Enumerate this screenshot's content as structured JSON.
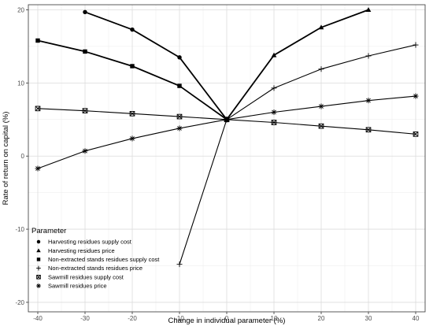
{
  "chart_data": {
    "type": "line",
    "xlabel": "Change in individual parameter (%)",
    "ylabel": "Rate of return on capital (%)",
    "xlim": [
      -42,
      42
    ],
    "ylim": [
      -21.3,
      20.7
    ],
    "xticks": [
      -40,
      -30,
      -20,
      -10,
      0,
      10,
      20,
      30,
      40
    ],
    "yticks": [
      -20,
      -10,
      0,
      10,
      20
    ],
    "grid": "major and minor",
    "legend_title": "Parameter",
    "legend_position": "inside bottom-left",
    "series": [
      {
        "name": "Harvesting residues supply cost",
        "marker": "circle",
        "line_weight": "bold",
        "x": [
          -30,
          -20,
          -10,
          0
        ],
        "y": [
          19.7,
          17.3,
          13.5,
          5.0
        ]
      },
      {
        "name": "Harvesting residues price",
        "marker": "triangle",
        "line_weight": "bold",
        "x": [
          0,
          10,
          20,
          30
        ],
        "y": [
          5.0,
          13.8,
          17.6,
          20.0
        ]
      },
      {
        "name": "Non-extracted stands residues supply cost",
        "marker": "square",
        "line_weight": "bold",
        "x": [
          -40,
          -30,
          -20,
          -10,
          0
        ],
        "y": [
          15.8,
          14.3,
          12.3,
          9.6,
          5.0
        ]
      },
      {
        "name": "Non-extracted stands residues price",
        "marker": "plus",
        "line_weight": "regular",
        "x": [
          -10,
          0,
          10,
          20,
          30,
          40
        ],
        "y": [
          -14.8,
          5.0,
          9.3,
          11.9,
          13.7,
          15.2
        ]
      },
      {
        "name": "Sawmill residues supply cost",
        "marker": "boxed-x",
        "line_weight": "regular",
        "x": [
          -40,
          -30,
          -20,
          -10,
          0,
          10,
          20,
          30,
          40
        ],
        "y": [
          6.5,
          6.2,
          5.8,
          5.4,
          5.0,
          4.6,
          4.1,
          3.6,
          3.0
        ]
      },
      {
        "name": "Sawmill residues price",
        "marker": "asterisk",
        "line_weight": "regular",
        "x": [
          -40,
          -30,
          -20,
          -10,
          0,
          10,
          20,
          30,
          40
        ],
        "y": [
          -1.7,
          0.7,
          2.4,
          3.8,
          5.0,
          6.0,
          6.8,
          7.6,
          8.2
        ]
      }
    ]
  }
}
